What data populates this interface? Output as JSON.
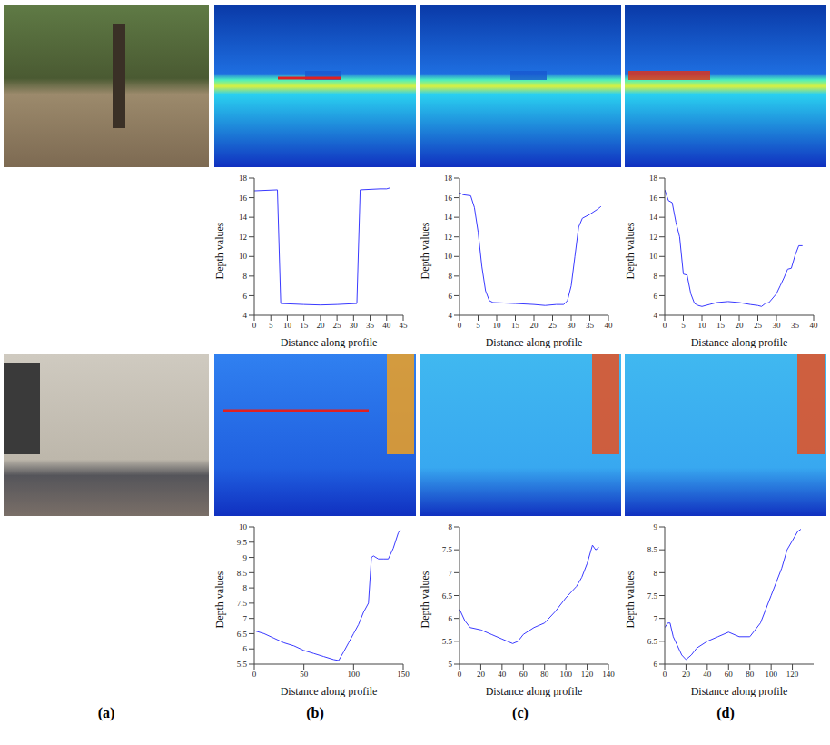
{
  "panel_labels": [
    "(a)",
    "(b)",
    "(c)",
    "(d)"
  ],
  "chart_data": [
    {
      "type": "line",
      "x_label": "Distance along profile",
      "y_label": "Depth values",
      "color": "#3a3aff",
      "x": [
        0,
        7,
        8,
        15,
        20,
        25,
        31,
        32,
        38,
        40,
        41
      ],
      "values": [
        16.7,
        16.8,
        5.2,
        5.1,
        5.05,
        5.1,
        5.2,
        16.8,
        16.9,
        16.9,
        17.0
      ],
      "xlim": [
        0,
        45
      ],
      "xticks": [
        0,
        5,
        10,
        15,
        20,
        25,
        30,
        35,
        40,
        45
      ],
      "ylim": [
        4,
        18
      ],
      "yticks": [
        4,
        6,
        8,
        10,
        12,
        14,
        16,
        18
      ]
    },
    {
      "type": "line",
      "x_label": "Distance along profile",
      "y_label": "Depth values",
      "color": "#3a3aff",
      "x": [
        0,
        1,
        3,
        4,
        5,
        6,
        7,
        8,
        9,
        15,
        20,
        23,
        26,
        28,
        29,
        30,
        31,
        32,
        33,
        35,
        37,
        38
      ],
      "values": [
        16.5,
        16.3,
        16.2,
        15,
        12.5,
        9,
        6.5,
        5.5,
        5.3,
        5.2,
        5.1,
        5.0,
        5.1,
        5.1,
        5.5,
        7,
        10,
        13,
        13.9,
        14.3,
        14.8,
        15.1
      ],
      "xlim": [
        0,
        40
      ],
      "xticks": [
        0,
        5,
        10,
        15,
        20,
        25,
        30,
        35,
        40
      ],
      "ylim": [
        4,
        18
      ],
      "yticks": [
        4,
        6,
        8,
        10,
        12,
        14,
        16,
        18
      ]
    },
    {
      "type": "line",
      "x_label": "Distance along profile",
      "y_label": "Depth values",
      "color": "#3a3aff",
      "x": [
        0,
        1,
        2,
        3,
        4,
        5,
        6,
        7,
        8,
        9,
        10,
        12,
        14,
        17,
        20,
        23,
        25,
        26,
        27,
        28,
        30,
        31,
        32,
        33,
        34,
        35,
        36,
        37
      ],
      "values": [
        16.8,
        15.7,
        15.5,
        13.5,
        12,
        8.2,
        8.1,
        6.2,
        5.2,
        5,
        4.9,
        5.1,
        5.3,
        5.4,
        5.3,
        5.1,
        5,
        4.9,
        5.2,
        5.3,
        6.2,
        7,
        7.8,
        8.7,
        8.8,
        10.1,
        11.1,
        11.1
      ],
      "xlim": [
        0,
        40
      ],
      "xticks": [
        0,
        5,
        10,
        15,
        20,
        25,
        30,
        35,
        40
      ],
      "ylim": [
        4,
        18
      ],
      "yticks": [
        4,
        6,
        8,
        10,
        12,
        14,
        16,
        18
      ]
    },
    {
      "type": "line",
      "x_label": "Distance along profile",
      "y_label": "Depth values",
      "color": "#3a3aff",
      "x": [
        0,
        10,
        20,
        30,
        40,
        50,
        60,
        70,
        80,
        85,
        90,
        95,
        100,
        105,
        110,
        115,
        118,
        120,
        125,
        130,
        135,
        140,
        145,
        147
      ],
      "values": [
        6.6,
        6.5,
        6.35,
        6.2,
        6.1,
        5.95,
        5.85,
        5.75,
        5.65,
        5.62,
        5.9,
        6.2,
        6.5,
        6.8,
        7.2,
        7.5,
        9,
        9.05,
        8.95,
        8.95,
        8.95,
        9.3,
        9.8,
        9.9
      ],
      "xlim": [
        0,
        150
      ],
      "xticks": [
        0,
        50,
        100,
        150
      ],
      "ylim": [
        5.5,
        10
      ],
      "yticks": [
        5.5,
        6,
        6.5,
        7,
        7.5,
        8,
        8.5,
        9,
        9.5,
        10
      ]
    },
    {
      "type": "line",
      "x_label": "Distance along profile",
      "y_label": "Depth values",
      "color": "#3a3aff",
      "x": [
        0,
        5,
        10,
        20,
        30,
        40,
        50,
        55,
        60,
        70,
        80,
        90,
        100,
        110,
        115,
        120,
        125,
        128,
        131
      ],
      "values": [
        6.2,
        5.95,
        5.8,
        5.75,
        5.65,
        5.55,
        5.45,
        5.5,
        5.65,
        5.8,
        5.9,
        6.15,
        6.45,
        6.7,
        6.9,
        7.2,
        7.6,
        7.5,
        7.55
      ],
      "xlim": [
        0,
        140
      ],
      "xticks": [
        0,
        20,
        40,
        60,
        80,
        100,
        120,
        140
      ],
      "ylim": [
        5,
        8
      ],
      "yticks": [
        5,
        5.5,
        6,
        6.5,
        7,
        7.5,
        8
      ]
    },
    {
      "type": "line",
      "x_label": "Distance along profile",
      "y_label": "Depth values",
      "color": "#3a3aff",
      "x": [
        0,
        3,
        5,
        8,
        12,
        16,
        20,
        25,
        30,
        40,
        50,
        60,
        70,
        80,
        90,
        100,
        110,
        115,
        120,
        125,
        128
      ],
      "values": [
        6.8,
        6.9,
        6.9,
        6.6,
        6.4,
        6.2,
        6.1,
        6.2,
        6.35,
        6.5,
        6.6,
        6.7,
        6.6,
        6.6,
        6.9,
        7.5,
        8.1,
        8.5,
        8.7,
        8.9,
        8.95
      ],
      "xlim": [
        0,
        140
      ],
      "xticks": [
        0,
        20,
        40,
        60,
        80,
        100,
        120
      ],
      "ylim": [
        6,
        9
      ],
      "yticks": [
        6,
        6.5,
        7,
        7.5,
        8,
        8.5,
        9
      ]
    }
  ]
}
